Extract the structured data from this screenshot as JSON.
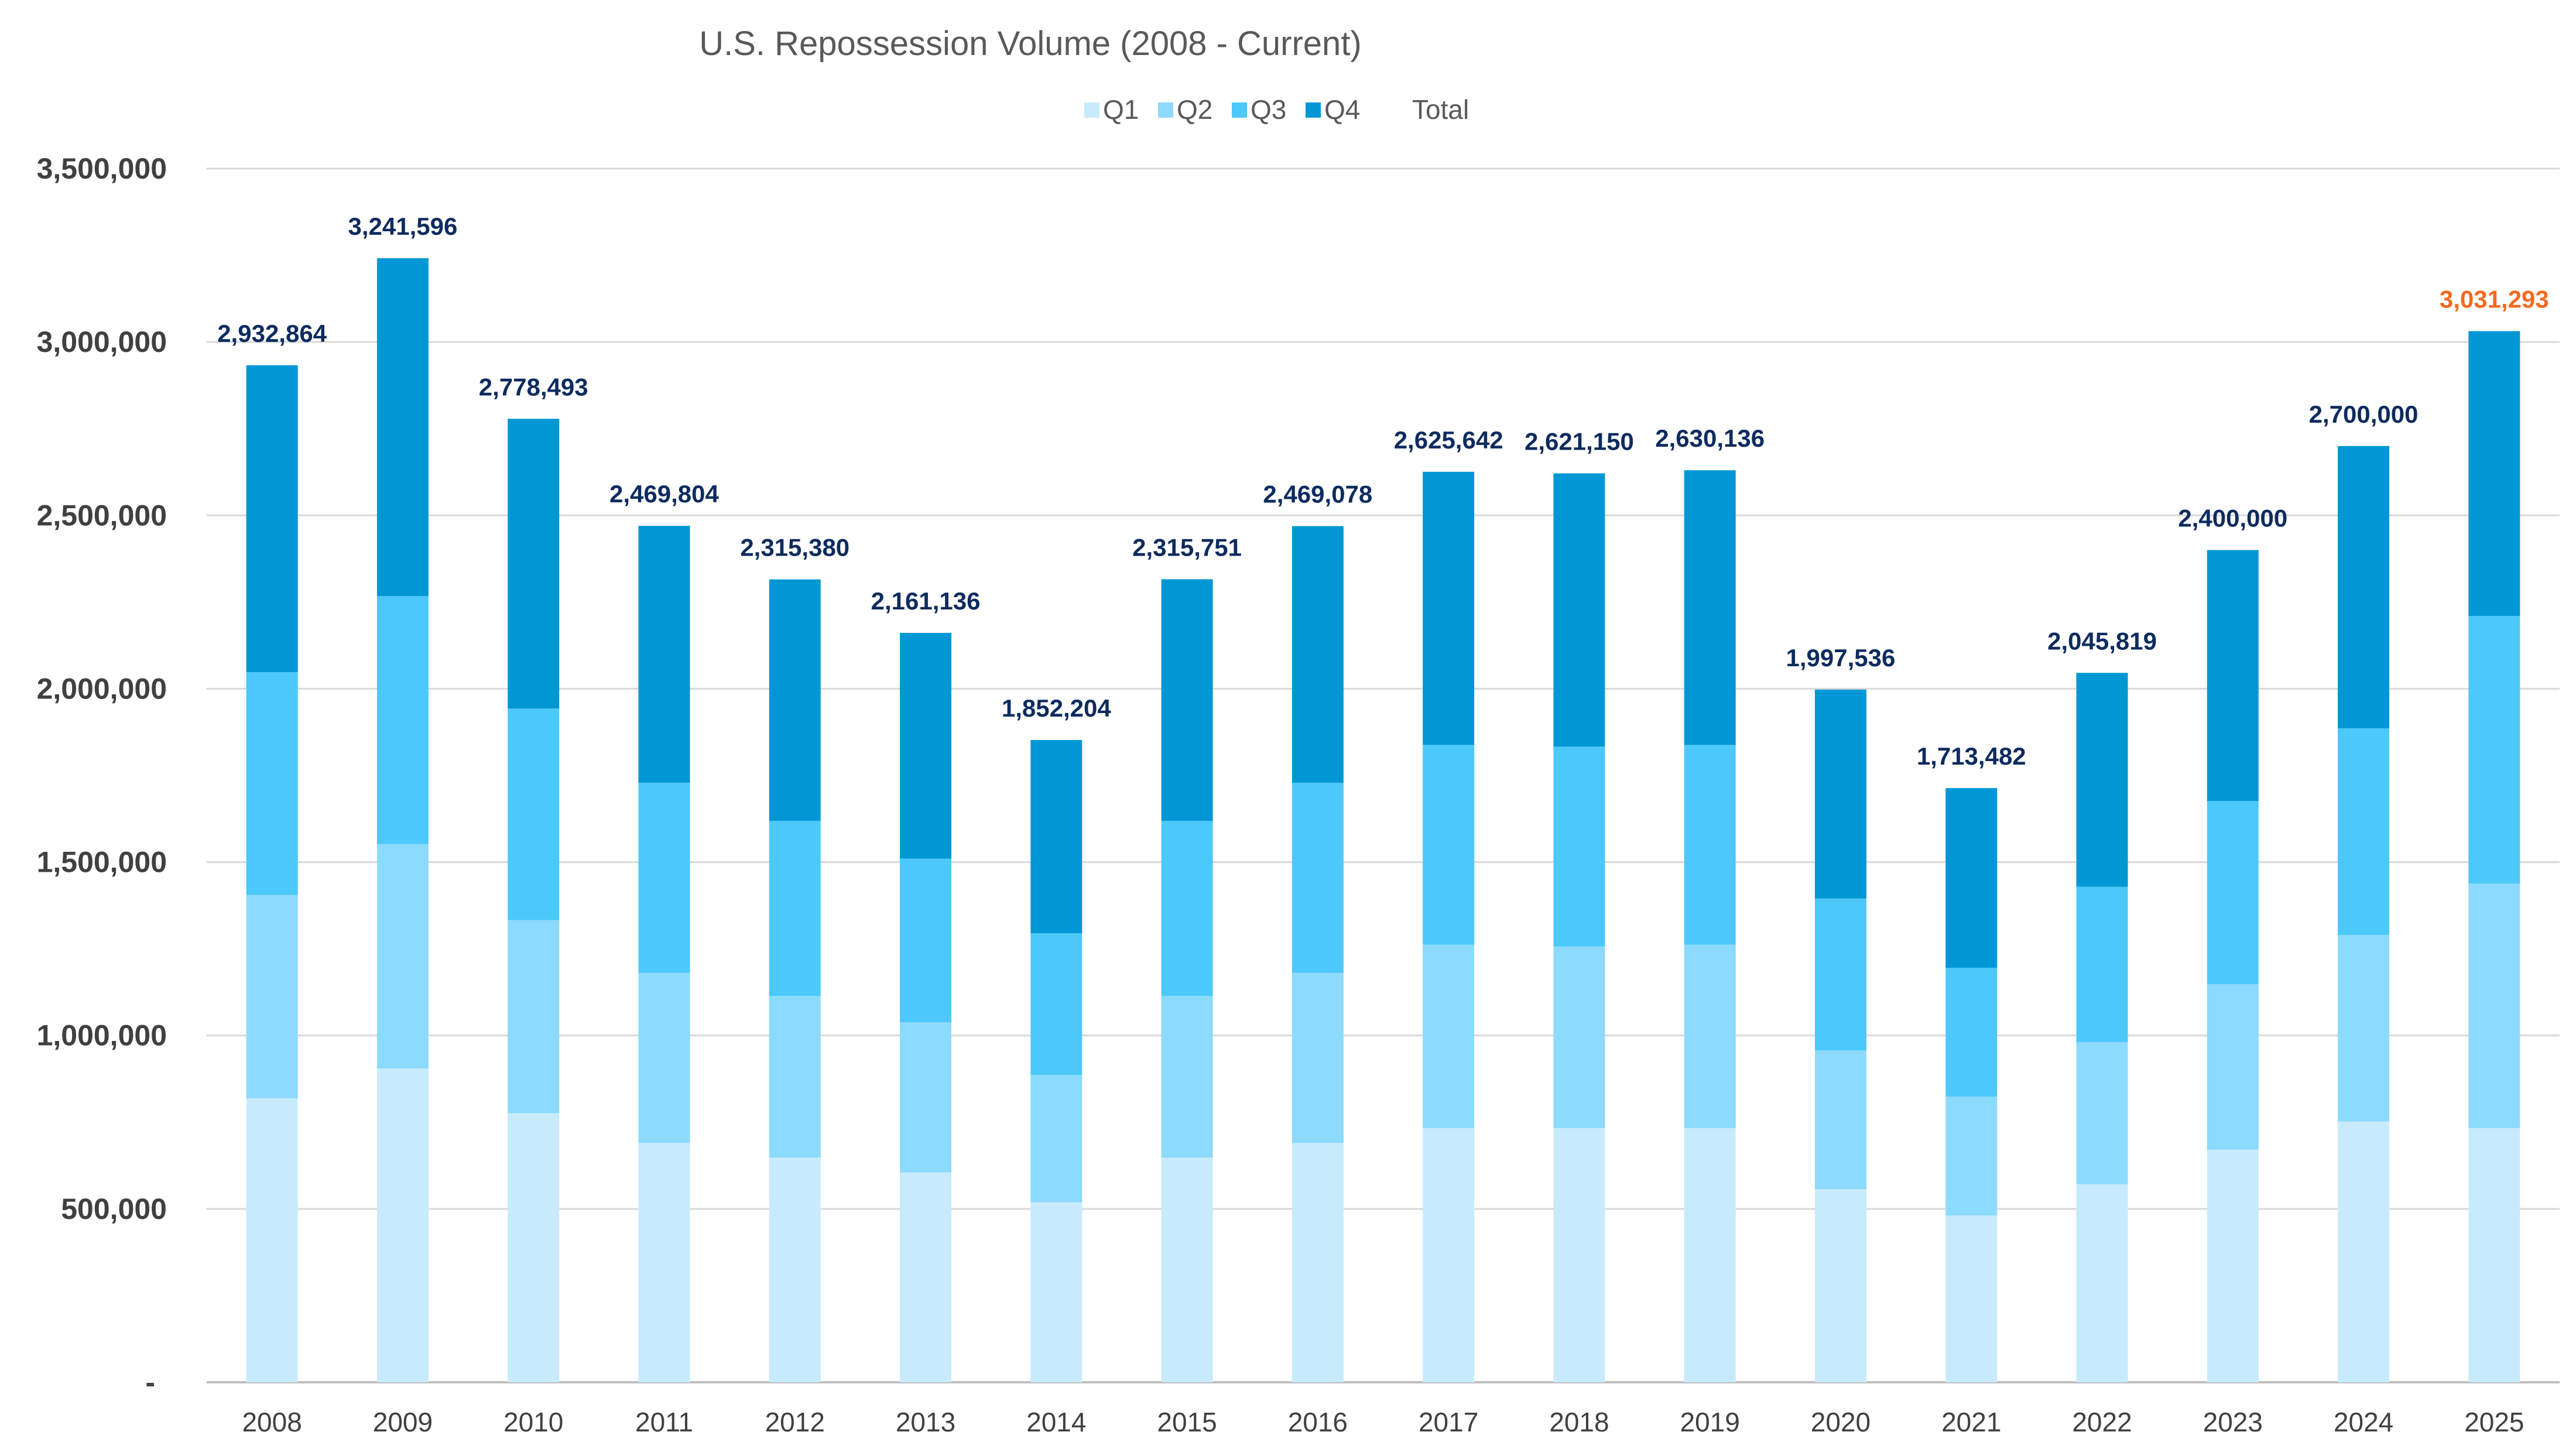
{
  "chart_data": {
    "type": "bar",
    "stacked": true,
    "title": "U.S. Repossession Volume (2008 - Current)",
    "xlabel": "",
    "ylabel": "",
    "ylim": [
      0,
      3500000
    ],
    "yticks": [
      0,
      500000,
      1000000,
      1500000,
      2000000,
      2500000,
      3000000,
      3500000
    ],
    "ytick_labels": [
      "-",
      "500,000",
      "1,000,000",
      "1,500,000",
      "2,000,000",
      "2,500,000",
      "3,000,000",
      "3,500,000"
    ],
    "grid": true,
    "legend_position": "top",
    "legend": [
      "Q1",
      "Q2",
      "Q3",
      "Q4",
      "Total"
    ],
    "categories": [
      "2008",
      "2009",
      "2010",
      "2011",
      "2012",
      "2013",
      "2014",
      "2015",
      "2016",
      "2017",
      "2018",
      "2019",
      "2020",
      "2021",
      "2022",
      "2023",
      "2024",
      "2025"
    ],
    "series": [
      {
        "name": "Q1",
        "color": "#c7ebfc",
        "values": [
          819000,
          905000,
          776000,
          690000,
          648000,
          605000,
          519000,
          648000,
          690000,
          733000,
          733000,
          733000,
          557000,
          481000,
          571000,
          671000,
          752000,
          733000
        ]
      },
      {
        "name": "Q2",
        "color": "#8cdafd",
        "values": [
          586000,
          647000,
          557000,
          491000,
          466000,
          433000,
          367000,
          466000,
          491000,
          529000,
          524000,
          529000,
          400000,
          343000,
          410000,
          477000,
          538000,
          705000
        ]
      },
      {
        "name": "Q3",
        "color": "#4dc8fb",
        "values": [
          643000,
          715000,
          610000,
          548000,
          505000,
          472000,
          409000,
          505000,
          548000,
          576000,
          576000,
          576000,
          438000,
          371000,
          448000,
          528000,
          596000,
          772000
        ]
      },
      {
        "name": "Q4",
        "color": "#0097d4",
        "values": [
          884864,
          974596,
          835493,
          740804,
          696380,
          651136,
          557204,
          696751,
          740078,
          787642,
          788150,
          792136,
          602536,
          518482,
          616819,
          724000,
          814000,
          821293
        ]
      }
    ],
    "totals": [
      2932864,
      3241596,
      2778493,
      2469804,
      2315380,
      2161136,
      1852204,
      2315751,
      2469078,
      2625642,
      2621150,
      2630136,
      1997536,
      1713482,
      2045819,
      2400000,
      2700000,
      3031293
    ],
    "total_labels": [
      "2,932,864",
      "3,241,596",
      "2,778,493",
      "2,469,804",
      "2,315,380",
      "2,161,136",
      "1,852,204",
      "2,315,751",
      "2,469,078",
      "2,625,642",
      "2,621,150",
      "2,630,136",
      "1,997,536",
      "1,713,482",
      "2,045,819",
      "2,400,000",
      "2,700,000",
      "3,031,293"
    ],
    "label_color": "#0d2b5e",
    "highlight_label_color": "#f26a21"
  }
}
